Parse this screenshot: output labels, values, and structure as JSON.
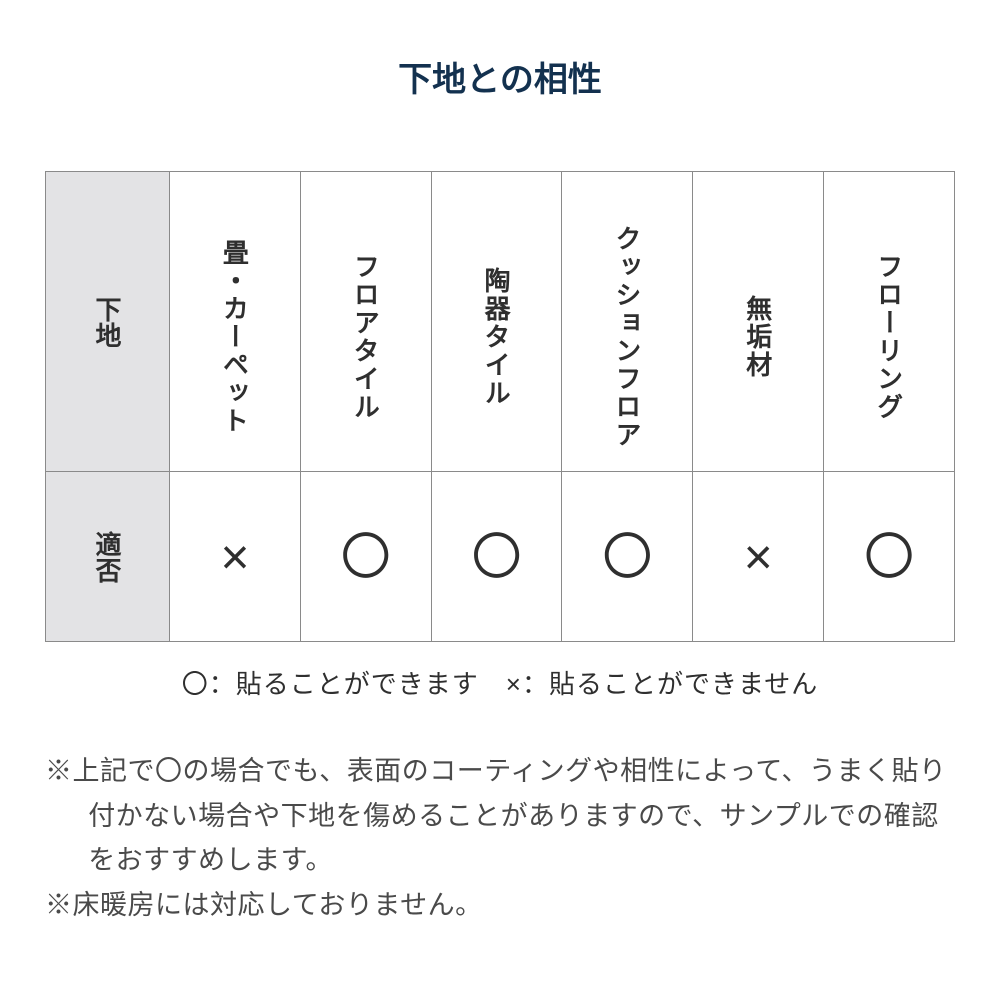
{
  "title": "下地との相性",
  "title_color": "#13314f",
  "table": {
    "row_header_1": "下地",
    "row_header_2": "適否",
    "header_bg": "#e3e3e5",
    "border_color": "#8a8a8a",
    "columns": [
      "畳・カーペット",
      "フロアタイル",
      "陶器タイル",
      "クッションフロア",
      "無垢材",
      "フローリング"
    ],
    "marks": [
      "×",
      "〇",
      "〇",
      "〇",
      "×",
      "〇"
    ],
    "mark_color": "#2f2f2f",
    "col_header_fontsize": 26,
    "mark_fontsize": 50
  },
  "legend": "〇：貼ることができます　×：貼ることができません",
  "notes": {
    "n1": "※上記で〇の場合でも、表面のコーティングや相性によって、うまく貼り付かない場合や下地を傷めることがありますので、サンプルでの確認をおすすめします。",
    "n2": "※床暖房には対応しておりません。"
  }
}
